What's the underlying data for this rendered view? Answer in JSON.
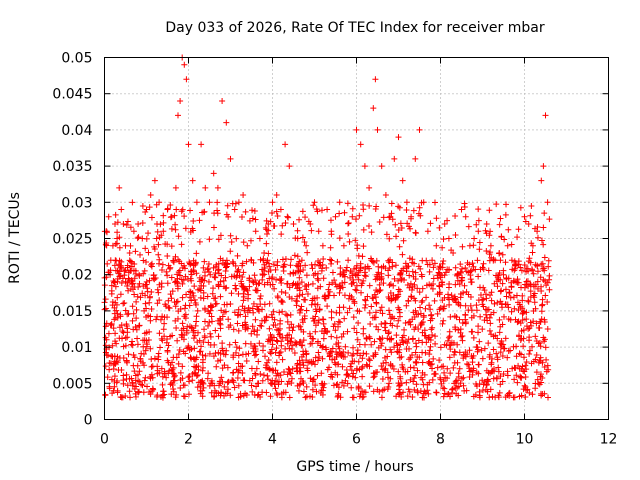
{
  "chart_data": {
    "type": "scatter",
    "title": "Day 033 of 2026, Rate Of TEC Index for receiver mbar",
    "xlabel": "GPS time / hours",
    "ylabel": "ROTI / TECUs",
    "xlim": [
      0,
      12
    ],
    "ylim": [
      0,
      0.05
    ],
    "x_ticks": [
      "0",
      "2",
      "4",
      "6",
      "8",
      "10",
      "12"
    ],
    "y_ticks": [
      "0",
      "0.005",
      "0.01",
      "0.015",
      "0.02",
      "0.025",
      "0.03",
      "0.035",
      "0.04",
      "0.045",
      "0.05"
    ],
    "grid": true,
    "marker": "+",
    "series_color": "#ff0000",
    "data_range_hours": [
      0,
      10.6
    ],
    "series": [
      {
        "name": "ROTI",
        "x": [
          0.05,
          0.1,
          0.15,
          0.2,
          0.25,
          0.3,
          0.35,
          0.4,
          0.45,
          0.5,
          0.55,
          0.6,
          0.7,
          0.8,
          0.9,
          1.0,
          1.1,
          1.2,
          1.25,
          1.3,
          1.4,
          1.5,
          1.6,
          1.7,
          1.75,
          1.8,
          1.85,
          1.9,
          1.95,
          2.0,
          2.1,
          2.2,
          2.3,
          2.4,
          2.5,
          2.6,
          2.7,
          2.8,
          2.9,
          3.0,
          3.1,
          3.2,
          3.3,
          3.4,
          3.5,
          3.6,
          3.7,
          3.8,
          3.9,
          4.0,
          4.1,
          4.2,
          4.3,
          4.4,
          4.5,
          4.6,
          4.7,
          4.8,
          4.9,
          5.0,
          5.1,
          5.2,
          5.3,
          5.4,
          5.5,
          5.6,
          5.7,
          5.8,
          5.9,
          6.0,
          6.1,
          6.2,
          6.3,
          6.4,
          6.45,
          6.5,
          6.6,
          6.7,
          6.8,
          6.9,
          7.0,
          7.1,
          7.2,
          7.3,
          7.4,
          7.5,
          7.6,
          7.7,
          7.8,
          7.9,
          8.0,
          8.1,
          8.2,
          8.3,
          8.4,
          8.5,
          8.6,
          8.7,
          8.8,
          8.9,
          9.0,
          9.1,
          9.2,
          9.3,
          9.4,
          9.5,
          9.6,
          9.7,
          9.8,
          9.9,
          10.0,
          10.1,
          10.2,
          10.3,
          10.4,
          10.45,
          10.5,
          10.55
        ],
        "y": [
          0.026,
          0.028,
          0.022,
          0.024,
          0.027,
          0.025,
          0.032,
          0.029,
          0.027,
          0.024,
          0.021,
          0.023,
          0.026,
          0.027,
          0.025,
          0.029,
          0.031,
          0.033,
          0.027,
          0.03,
          0.026,
          0.029,
          0.028,
          0.032,
          0.042,
          0.044,
          0.05,
          0.049,
          0.047,
          0.038,
          0.033,
          0.03,
          0.038,
          0.032,
          0.03,
          0.034,
          0.032,
          0.044,
          0.041,
          0.036,
          0.029,
          0.03,
          0.031,
          0.024,
          0.022,
          0.026,
          0.025,
          0.023,
          0.027,
          0.03,
          0.031,
          0.029,
          0.038,
          0.035,
          0.027,
          0.025,
          0.022,
          0.024,
          0.027,
          0.03,
          0.026,
          0.024,
          0.029,
          0.026,
          0.028,
          0.03,
          0.024,
          0.022,
          0.028,
          0.04,
          0.038,
          0.035,
          0.032,
          0.043,
          0.047,
          0.04,
          0.035,
          0.031,
          0.028,
          0.036,
          0.039,
          0.033,
          0.03,
          0.028,
          0.036,
          0.04,
          0.03,
          0.026,
          0.022,
          0.024,
          0.021,
          0.027,
          0.025,
          0.023,
          0.02,
          0.029,
          0.028,
          0.024,
          0.025,
          0.026,
          0.021,
          0.027,
          0.024,
          0.022,
          0.023,
          0.02,
          0.024,
          0.022,
          0.019,
          0.021,
          0.028,
          0.027,
          0.024,
          0.026,
          0.033,
          0.035,
          0.042,
          0.03
        ]
      }
    ]
  }
}
